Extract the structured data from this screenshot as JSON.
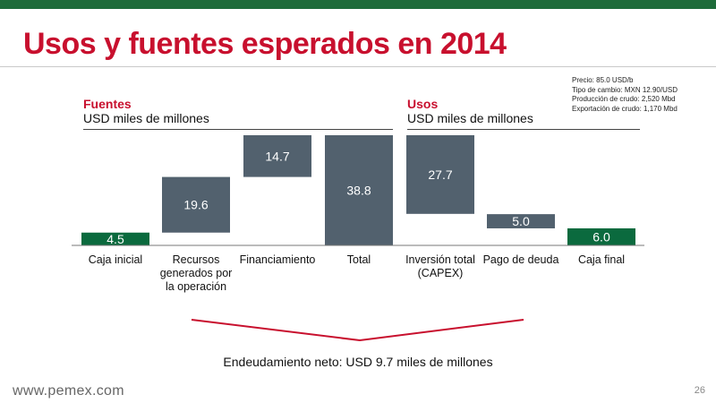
{
  "header": {
    "title": "Usos y fuentes esperados en 2014"
  },
  "assumptions": [
    "Precio: 85.0 USD/b",
    "Tipo de cambio: MXN 12.90/USD",
    "Producción de crudo: 2,520 Mbd",
    "Exportación de crudo: 1,170 Mbd"
  ],
  "sections": {
    "fuentes": {
      "label": "Fuentes",
      "unit": "USD miles de millones"
    },
    "usos": {
      "label": "Usos",
      "unit": "USD miles de millones"
    }
  },
  "colors": {
    "accent_red": "#c8102e",
    "brand_green": "#1e6b3a",
    "bar_slate": "#52616e",
    "bar_green": "#0b6a3e"
  },
  "chart_data": {
    "type": "bar",
    "subtype": "waterfall",
    "categories": [
      "Caja inicial",
      "Recursos generados por la operación",
      "Financiamiento",
      "Total",
      "Inversión total (CAPEX)",
      "Pago de deuda",
      "Caja final"
    ],
    "category_lines": [
      [
        "Caja inicial"
      ],
      [
        "Recursos",
        "generados por",
        "la operación"
      ],
      [
        "Financiamiento"
      ],
      [
        "Total"
      ],
      [
        "Inversión total",
        "(CAPEX)"
      ],
      [
        "Pago de deuda"
      ],
      [
        "Caja final"
      ]
    ],
    "values": [
      4.5,
      19.6,
      14.7,
      38.8,
      27.7,
      5.0,
      6.0
    ],
    "labels": [
      "4.5",
      "19.6",
      "14.7",
      "38.8",
      "27.7",
      "5.0",
      "6.0"
    ],
    "start": [
      0,
      4.5,
      24.1,
      0,
      11.1,
      6.0,
      0
    ],
    "color_keys": [
      "bar_green",
      "bar_slate",
      "bar_slate",
      "bar_slate",
      "bar_slate",
      "bar_slate",
      "bar_green"
    ],
    "ylim": [
      0,
      38.8
    ],
    "grid": false
  },
  "summary": {
    "net_debt": "Endeudamiento neto: USD 9.7 miles de millones"
  },
  "footer": {
    "url": "www.pemex.com",
    "page": "26"
  }
}
